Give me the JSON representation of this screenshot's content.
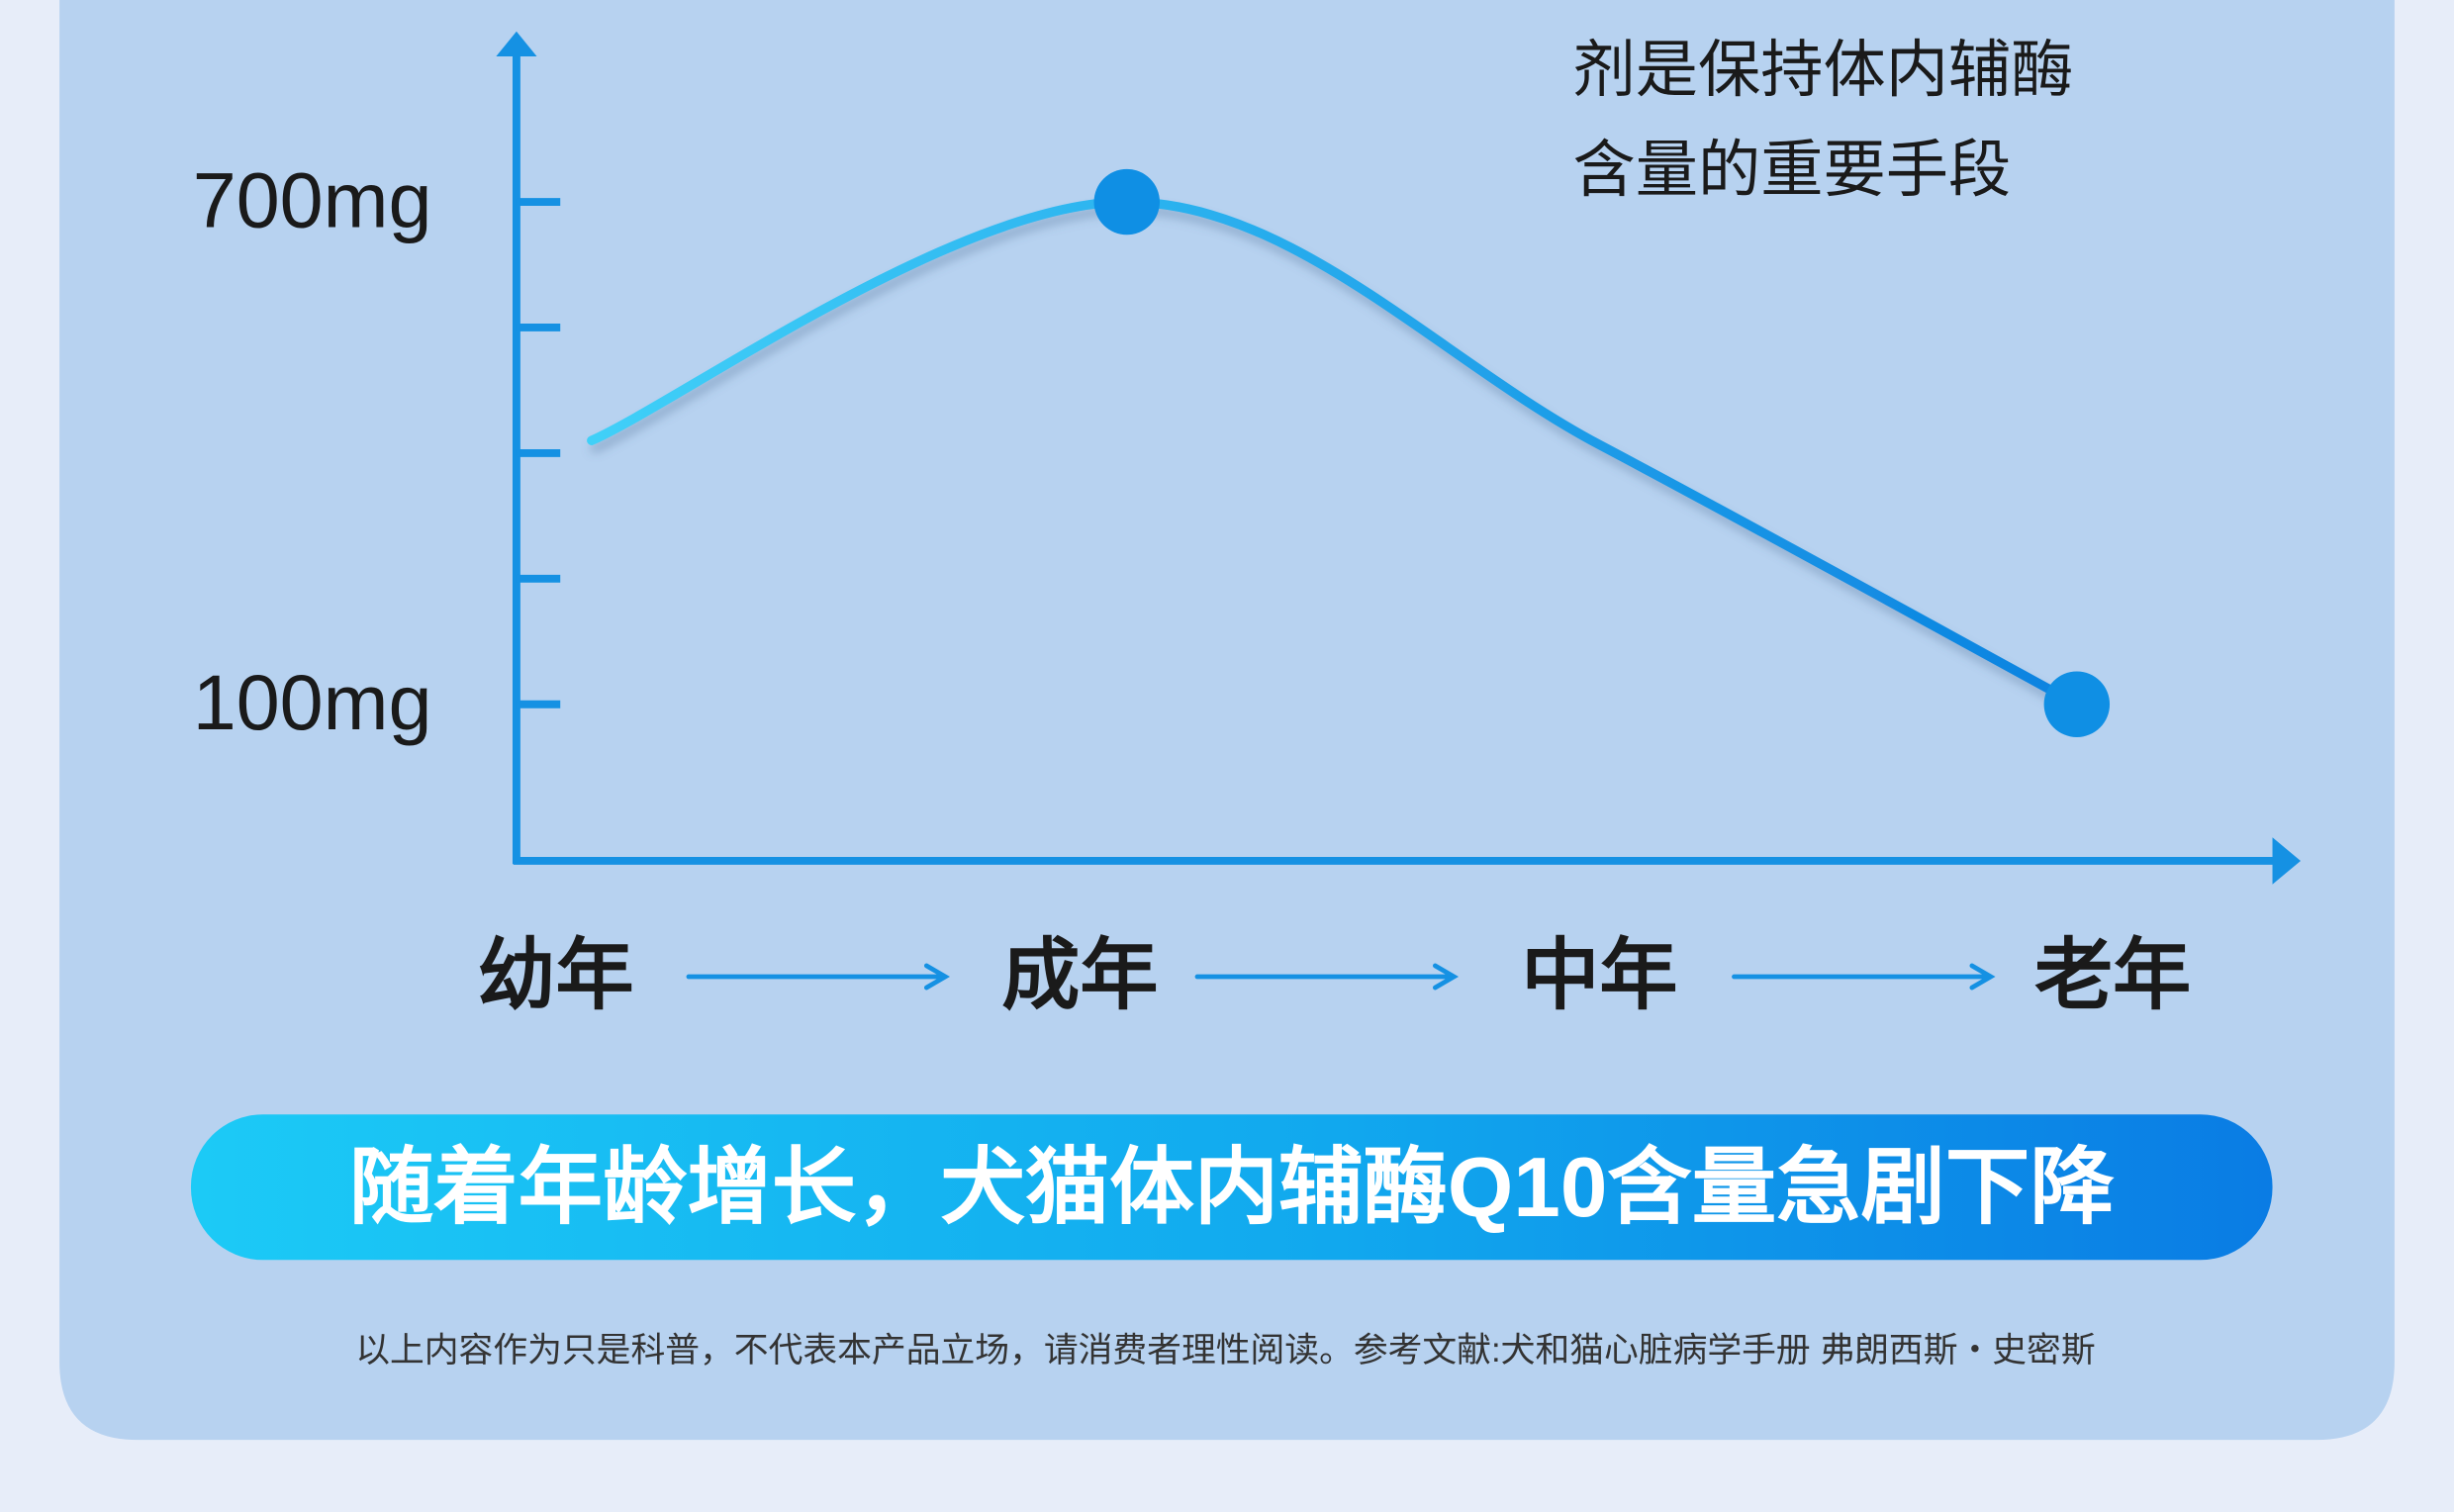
{
  "chart_data": {
    "type": "line",
    "annotation_lines": [
      "剂是保持体内辅酶",
      "含量的重要手段"
    ],
    "categories": [
      "幼年",
      "成年",
      "中年",
      "老年"
    ],
    "values": [
      415,
      700,
      410,
      100
    ],
    "color": "#0f8fe4",
    "ylim": [
      -87,
      885
    ],
    "yticks": [
      {
        "value": 100,
        "label": "100mg"
      },
      {
        "value": 700,
        "label": "700mg"
      }
    ],
    "yminorticks": [
      250,
      400,
      550
    ],
    "caption": "随着年龄增长，犬猫体内辅酶Q10含量急剧下降",
    "footnote": "以上内容作为只是科普，不代表本产品立场，请消费者理性阅读。参考文献:犬和猫心脏病学手册  弗朗西斯・史密斯"
  }
}
